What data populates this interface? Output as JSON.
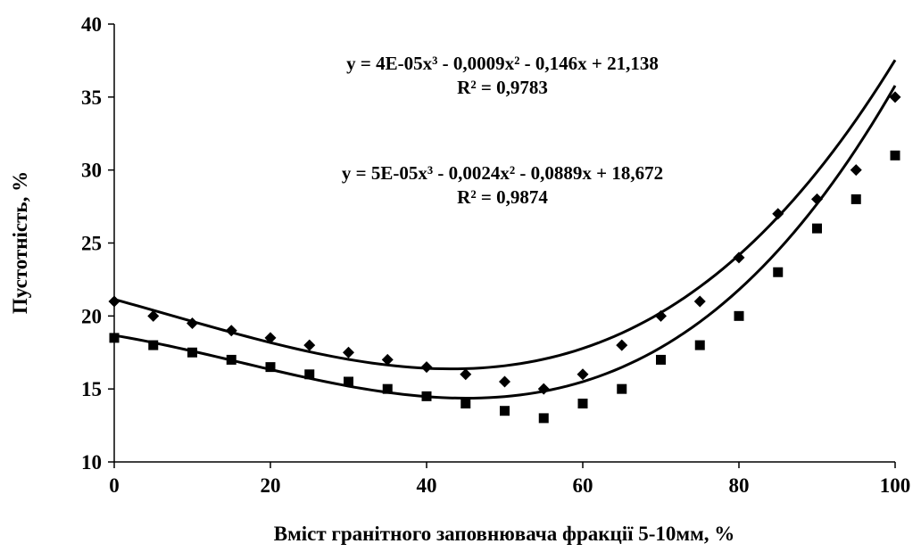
{
  "chart_data": {
    "type": "scatter",
    "xlabel": "Вміст гранітного заповнювача фракції 5-10мм, %",
    "ylabel": "Пустотність, %",
    "xlim": [
      0,
      100
    ],
    "ylim": [
      10,
      40
    ],
    "x_ticks": [
      "0",
      "20",
      "40",
      "60",
      "80",
      "100"
    ],
    "y_ticks": [
      "10",
      "15",
      "20",
      "25",
      "30",
      "35",
      "40"
    ],
    "grid": false,
    "legend": "none",
    "series": [
      {
        "marker": "diamond",
        "x": [
          0,
          5,
          10,
          15,
          20,
          25,
          30,
          35,
          40,
          45,
          50,
          55,
          60,
          65,
          70,
          75,
          80,
          85,
          90,
          95,
          100
        ],
        "y": [
          21,
          20,
          19.5,
          19,
          18.5,
          18,
          17.5,
          17,
          16.5,
          16,
          15.5,
          15,
          16,
          18,
          20,
          21,
          24,
          27,
          28,
          30,
          35
        ],
        "trendline": {
          "type": "polynomial",
          "degree": 3,
          "coefficients": [
            4e-05,
            -0.0009,
            -0.146,
            21.138
          ]
        },
        "equation": "y = 4E-05x³ - 0,0009x² - 0,146x + 21,138",
        "r2": "R² = 0,9783"
      },
      {
        "marker": "square",
        "x": [
          0,
          5,
          10,
          15,
          20,
          25,
          30,
          35,
          40,
          45,
          50,
          55,
          60,
          65,
          70,
          75,
          80,
          85,
          90,
          95,
          100
        ],
        "y": [
          18.5,
          18,
          17.5,
          17,
          16.5,
          16,
          15.5,
          15,
          14.5,
          14,
          13.5,
          13,
          14,
          15,
          17,
          18,
          20,
          23,
          26,
          28,
          31
        ],
        "trendline": {
          "type": "polynomial",
          "degree": 3,
          "coefficients": [
            5e-05,
            -0.0024,
            -0.0889,
            18.672
          ]
        },
        "equation": "y = 5E-05x³ - 0,0024x² - 0,0889x + 18,672",
        "r2": "R² = 0,9874"
      }
    ]
  },
  "colors": {
    "axis": "#000000",
    "marker": "#000000",
    "background": "#ffffff"
  }
}
